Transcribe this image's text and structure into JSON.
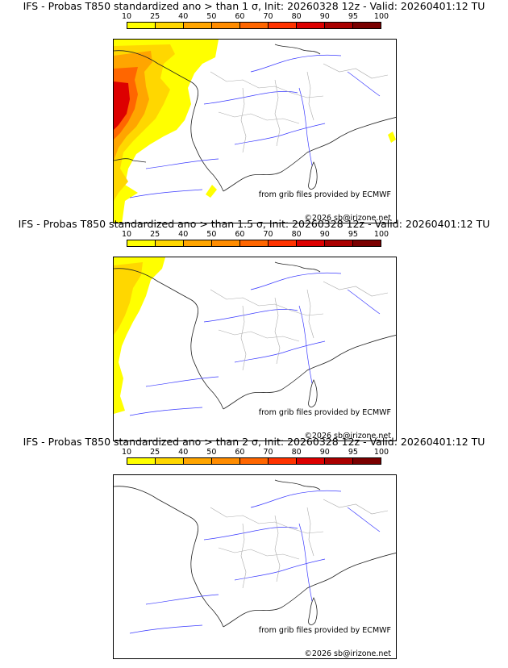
{
  "legend": {
    "ticks": [
      "10",
      "25",
      "40",
      "50",
      "60",
      "70",
      "80",
      "90",
      "95",
      "100"
    ],
    "colors": [
      "#ffff00",
      "#ffd700",
      "#ffa500",
      "#ff8c00",
      "#ff6600",
      "#ff3300",
      "#dd0000",
      "#aa0000",
      "#7a0000"
    ]
  },
  "panels": [
    {
      "title": "IFS - Probas T850  standardized ano > than 1 σ, Init: 20260328 12z - Valid: 20260401:12 TU",
      "credit_source": "from grib files provided by ECMWF",
      "credit_copyright": "©2026 sb@irizone.net"
    },
    {
      "title": "IFS - Probas T850  standardized ano > than 1.5 σ, Init: 20260328 12z - Valid: 20260401:12 TU",
      "credit_source": "from grib files provided by ECMWF",
      "credit_copyright": "©2026 sb@irizone.net"
    },
    {
      "title": "IFS - Probas T850  standardized ano > than 2 σ, Init: 20260328 12z - Valid: 20260401:12 TU",
      "credit_source": "from grib files provided by ECMWF",
      "credit_copyright": "©2026 sb@irizone.net"
    }
  ]
}
